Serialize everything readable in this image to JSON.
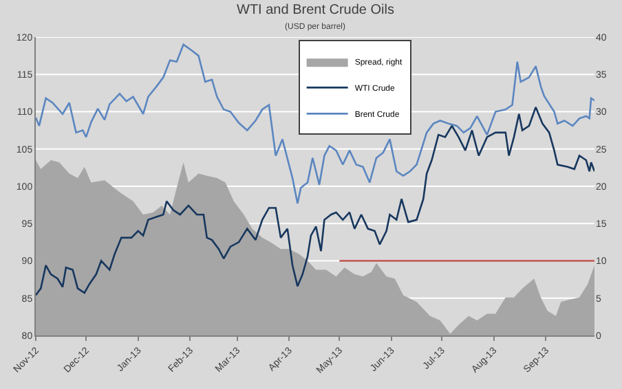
{
  "chart_data": {
    "type": "line",
    "title": "WTI and Brent Crude Oils",
    "subtitle": "(USD per barrel)",
    "xlim": [
      "2012-11-01",
      "2013-09-30"
    ],
    "xticks": [
      {
        "value": "2012-11-01",
        "label": "Nov-12"
      },
      {
        "value": "2012-12-01",
        "label": "Dec-12"
      },
      {
        "value": "2013-01-01",
        "label": "Jan-13"
      },
      {
        "value": "2013-02-01",
        "label": "Feb-13"
      },
      {
        "value": "2013-03-01",
        "label": "Mar-13"
      },
      {
        "value": "2013-04-01",
        "label": "Apr-13"
      },
      {
        "value": "2013-05-01",
        "label": "May-13"
      },
      {
        "value": "2013-06-01",
        "label": "Jun-13"
      },
      {
        "value": "2013-07-01",
        "label": "Jul-13"
      },
      {
        "value": "2013-08-01",
        "label": "Aug-13"
      },
      {
        "value": "2013-09-01",
        "label": "Sep-13"
      }
    ],
    "ylim": [
      80,
      120
    ],
    "yticks": [
      80,
      85,
      90,
      95,
      100,
      105,
      110,
      115,
      120
    ],
    "y2lim": [
      0,
      40
    ],
    "y2ticks": [
      0,
      5,
      10,
      15,
      20,
      25,
      30,
      35,
      40
    ],
    "grid": "y",
    "legend": "top right",
    "line_style": "solid",
    "series": [
      {
        "name": "Spread, right",
        "type": "area",
        "axis": "y2",
        "color": "#a6a6a6",
        "x": [
          "2012-11-01",
          "2012-11-04",
          "2012-11-10",
          "2012-11-15",
          "2012-11-21",
          "2012-11-26",
          "2012-11-30",
          "2012-12-04",
          "2012-12-12",
          "2012-12-21",
          "2012-12-29",
          "2013-01-04",
          "2013-01-10",
          "2013-01-15",
          "2013-01-20",
          "2013-01-24",
          "2013-01-28",
          "2013-01-31",
          "2013-02-06",
          "2013-02-11",
          "2013-02-17",
          "2013-02-22",
          "2013-02-27",
          "2013-03-05",
          "2013-03-10",
          "2013-03-16",
          "2013-03-21",
          "2013-03-27",
          "2013-04-01",
          "2013-04-07",
          "2013-04-12",
          "2013-04-17",
          "2013-04-23",
          "2013-04-29",
          "2013-05-04",
          "2013-05-10",
          "2013-05-15",
          "2013-05-20",
          "2013-05-23",
          "2013-05-29",
          "2013-06-03",
          "2013-06-08",
          "2013-06-16",
          "2013-06-24",
          "2013-06-30",
          "2013-07-06",
          "2013-07-11",
          "2013-07-17",
          "2013-07-22",
          "2013-07-28",
          "2013-08-02",
          "2013-08-08",
          "2013-08-13",
          "2013-08-18",
          "2013-08-25",
          "2013-08-29",
          "2013-09-02",
          "2013-09-07",
          "2013-09-10",
          "2013-09-15",
          "2013-09-21",
          "2013-09-26",
          "2013-09-30"
        ],
        "values": [
          23.5,
          22.3,
          23.5,
          23.2,
          21.7,
          21.1,
          22.6,
          20.5,
          20.8,
          19.2,
          18.0,
          16.2,
          16.5,
          17.4,
          16.2,
          19.8,
          23.2,
          20.5,
          21.7,
          21.4,
          21.1,
          20.5,
          18.0,
          16.2,
          14.3,
          13.1,
          12.5,
          11.6,
          11.6,
          10.9,
          10.0,
          8.8,
          8.8,
          7.9,
          9.1,
          8.2,
          7.9,
          8.5,
          9.7,
          7.9,
          7.6,
          5.4,
          4.5,
          2.6,
          2.0,
          0.2,
          1.4,
          2.6,
          2.0,
          2.9,
          2.9,
          5.1,
          5.1,
          6.3,
          7.6,
          5.1,
          3.3,
          2.6,
          4.5,
          4.8,
          5.1,
          6.9,
          9.4
        ]
      },
      {
        "name": "WTI Crude",
        "color": "#17375e",
        "x": [
          "2012-11-01",
          "2012-11-04",
          "2012-11-07",
          "2012-11-10",
          "2012-11-14",
          "2012-11-17",
          "2012-11-19",
          "2012-11-23",
          "2012-11-26",
          "2012-11-30",
          "2012-12-03",
          "2012-12-07",
          "2012-12-10",
          "2012-12-15",
          "2012-12-18",
          "2012-12-22",
          "2012-12-28",
          "2013-01-01",
          "2013-01-04",
          "2013-01-07",
          "2013-01-12",
          "2013-01-16",
          "2013-01-18",
          "2013-01-22",
          "2013-01-26",
          "2013-01-31",
          "2013-02-05",
          "2013-02-09",
          "2013-02-11",
          "2013-02-14",
          "2013-02-18",
          "2013-02-21",
          "2013-02-25",
          "2013-03-02",
          "2013-03-07",
          "2013-03-12",
          "2013-03-16",
          "2013-03-20",
          "2013-03-24",
          "2013-03-27",
          "2013-03-31",
          "2013-04-03",
          "2013-04-06",
          "2013-04-09",
          "2013-04-12",
          "2013-04-14",
          "2013-04-17",
          "2013-04-20",
          "2013-04-22",
          "2013-04-26",
          "2013-04-29",
          "2013-05-03",
          "2013-05-07",
          "2013-05-10",
          "2013-05-14",
          "2013-05-18",
          "2013-05-22",
          "2013-05-25",
          "2013-05-29",
          "2013-05-31",
          "2013-06-04",
          "2013-06-07",
          "2013-06-11",
          "2013-06-16",
          "2013-06-20",
          "2013-06-22",
          "2013-06-25",
          "2013-06-29",
          "2013-07-03",
          "2013-07-07",
          "2013-07-11",
          "2013-07-15",
          "2013-07-19",
          "2013-07-23",
          "2013-07-28",
          "2013-08-02",
          "2013-08-08",
          "2013-08-10",
          "2013-08-13",
          "2013-08-16",
          "2013-08-18",
          "2013-08-22",
          "2013-08-26",
          "2013-08-30",
          "2013-09-03",
          "2013-09-06",
          "2013-09-08",
          "2013-09-14",
          "2013-09-18",
          "2013-09-21",
          "2013-09-25",
          "2013-09-27",
          "2013-09-28",
          "2013-09-30"
        ],
        "values": [
          85.4,
          86.3,
          89.4,
          88.2,
          87.6,
          86.5,
          89.1,
          88.8,
          86.3,
          85.7,
          86.9,
          88.2,
          90.0,
          88.8,
          90.9,
          93.1,
          93.1,
          94.0,
          93.4,
          95.5,
          95.9,
          96.2,
          98.0,
          96.8,
          96.2,
          97.4,
          96.2,
          96.2,
          93.1,
          92.8,
          91.6,
          90.3,
          91.9,
          92.5,
          94.3,
          92.8,
          95.5,
          97.1,
          97.1,
          93.1,
          94.3,
          89.4,
          86.6,
          88.2,
          90.6,
          93.4,
          94.6,
          91.3,
          95.5,
          96.2,
          96.5,
          95.5,
          96.5,
          94.3,
          96.2,
          94.3,
          94.0,
          92.2,
          94.0,
          96.2,
          95.5,
          98.3,
          95.2,
          95.5,
          98.3,
          101.7,
          103.5,
          106.9,
          106.6,
          108.1,
          106.6,
          104.8,
          107.5,
          104.1,
          106.6,
          107.2,
          107.2,
          104.1,
          106.6,
          109.7,
          107.5,
          108.1,
          110.6,
          108.4,
          107.2,
          104.8,
          102.9,
          102.6,
          102.3,
          104.1,
          103.5,
          102.0,
          103.2,
          102.0
        ]
      },
      {
        "name": "Brent Crude",
        "color": "#5b86c0",
        "x": [
          "2012-11-01",
          "2012-11-03",
          "2012-11-07",
          "2012-11-11",
          "2012-11-17",
          "2012-11-21",
          "2012-11-25",
          "2012-11-29",
          "2012-12-01",
          "2012-12-04",
          "2012-12-08",
          "2012-12-12",
          "2012-12-15",
          "2012-12-21",
          "2012-12-25",
          "2012-12-29",
          "2013-01-04",
          "2013-01-07",
          "2013-01-12",
          "2013-01-16",
          "2013-01-20",
          "2013-01-24",
          "2013-01-28",
          "2013-02-02",
          "2013-02-06",
          "2013-02-10",
          "2013-02-14",
          "2013-02-17",
          "2013-02-21",
          "2013-02-25",
          "2013-03-02",
          "2013-03-07",
          "2013-03-12",
          "2013-03-16",
          "2013-03-20",
          "2013-03-24",
          "2013-03-28",
          "2013-04-03",
          "2013-04-06",
          "2013-04-08",
          "2013-04-12",
          "2013-04-15",
          "2013-04-19",
          "2013-04-22",
          "2013-04-25",
          "2013-04-29",
          "2013-05-03",
          "2013-05-07",
          "2013-05-11",
          "2013-05-15",
          "2013-05-19",
          "2013-05-23",
          "2013-05-27",
          "2013-05-31",
          "2013-06-04",
          "2013-06-08",
          "2013-06-12",
          "2013-06-16",
          "2013-06-22",
          "2013-06-26",
          "2013-06-30",
          "2013-07-05",
          "2013-07-10",
          "2013-07-14",
          "2013-07-18",
          "2013-07-22",
          "2013-07-28",
          "2013-08-02",
          "2013-08-08",
          "2013-08-12",
          "2013-08-15",
          "2013-08-17",
          "2013-08-22",
          "2013-08-26",
          "2013-08-29",
          "2013-08-31",
          "2013-09-06",
          "2013-09-08",
          "2013-09-12",
          "2013-09-17",
          "2013-09-21",
          "2013-09-25",
          "2013-09-27",
          "2013-09-28",
          "2013-09-30"
        ],
        "values": [
          109.2,
          108.1,
          111.8,
          111.2,
          109.7,
          111.2,
          107.2,
          107.5,
          106.6,
          108.6,
          110.4,
          108.9,
          111.0,
          112.4,
          111.4,
          112.0,
          109.7,
          112.0,
          113.4,
          114.6,
          116.9,
          116.7,
          119.0,
          118.2,
          117.5,
          114.0,
          114.3,
          112.0,
          110.3,
          110.0,
          108.5,
          107.5,
          108.8,
          110.3,
          110.9,
          104.1,
          106.3,
          101.1,
          97.7,
          99.8,
          100.5,
          103.8,
          100.2,
          104.1,
          105.4,
          104.8,
          102.9,
          104.8,
          102.9,
          102.6,
          100.5,
          103.8,
          104.5,
          106.3,
          102.0,
          101.4,
          102.0,
          102.9,
          107.2,
          108.4,
          108.8,
          108.4,
          108.1,
          107.2,
          107.8,
          109.4,
          106.9,
          110.0,
          110.3,
          110.9,
          116.7,
          114.0,
          114.6,
          116.1,
          113.4,
          112.1,
          110.0,
          108.4,
          108.8,
          108.1,
          109.1,
          109.4,
          109.1,
          111.8,
          111.5
        ]
      },
      {
        "type": "line",
        "axis": "y2",
        "color": "#c0504d",
        "x": [
          "2013-05-01",
          "2013-09-30"
        ],
        "values": [
          10,
          10
        ]
      }
    ]
  }
}
